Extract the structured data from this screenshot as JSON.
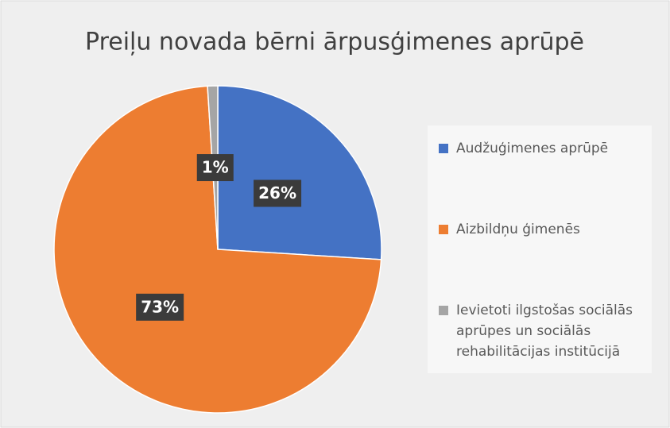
{
  "chart_data": {
    "type": "pie",
    "title": "Preiļu novada bērni ārpusģimenes aprūpē",
    "categories": [
      "Audžuģimenes aprūpē",
      "Aizbildņu ģimenēs",
      "Ievietoti ilgstošas sociālās aprūpes un sociālās rehabilitācijas institūcijā"
    ],
    "values": [
      26,
      73,
      1
    ],
    "value_labels": [
      "26%",
      "73%",
      "1%"
    ],
    "colors": [
      "#4472c4",
      "#ed7d31",
      "#a5a5a5"
    ]
  }
}
